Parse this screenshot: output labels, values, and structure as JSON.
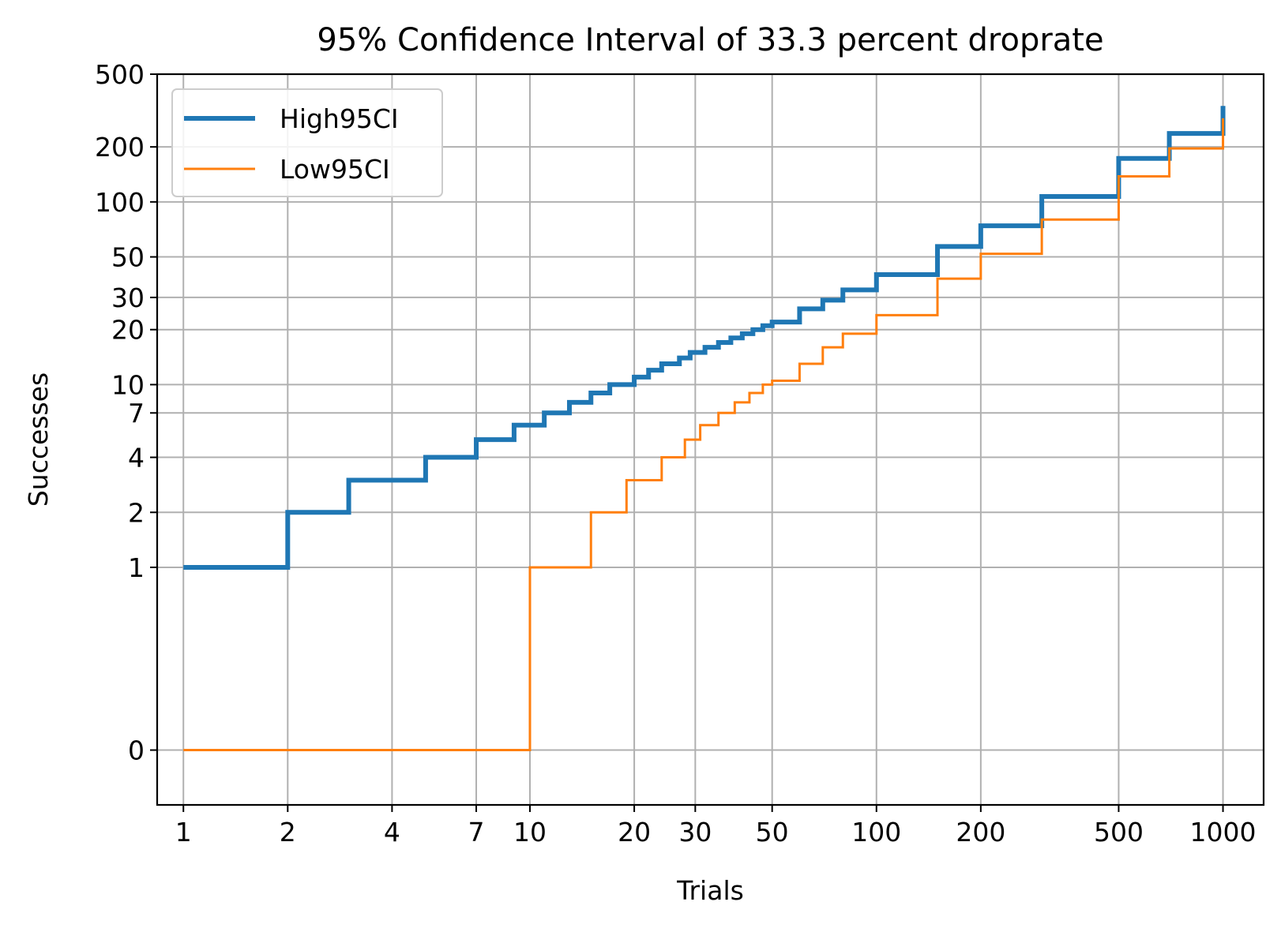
{
  "chart_data": {
    "type": "line",
    "title": "95% Confidence Interval of 33.3 percent droprate",
    "xlabel": "Trials",
    "ylabel": "Successes",
    "x_scale": "log",
    "y_scale": "symlog",
    "xlim": [
      0.84,
      1310
    ],
    "ylim": [
      -0.3,
      500
    ],
    "x_ticks": [
      {
        "value": 1,
        "label": "1"
      },
      {
        "value": 2,
        "label": "2"
      },
      {
        "value": 4,
        "label": "4"
      },
      {
        "value": 7,
        "label": "7"
      },
      {
        "value": 10,
        "label": "10"
      },
      {
        "value": 20,
        "label": "20"
      },
      {
        "value": 30,
        "label": "30"
      },
      {
        "value": 50,
        "label": "50"
      },
      {
        "value": 100,
        "label": "100"
      },
      {
        "value": 200,
        "label": "200"
      },
      {
        "value": 500,
        "label": "500"
      },
      {
        "value": 1000,
        "label": "1000"
      }
    ],
    "y_ticks": [
      {
        "value": 0,
        "label": "0"
      },
      {
        "value": 1,
        "label": "1"
      },
      {
        "value": 2,
        "label": "2"
      },
      {
        "value": 4,
        "label": "4"
      },
      {
        "value": 7,
        "label": "7"
      },
      {
        "value": 10,
        "label": "10"
      },
      {
        "value": 20,
        "label": "20"
      },
      {
        "value": 30,
        "label": "30"
      },
      {
        "value": 50,
        "label": "50"
      },
      {
        "value": 100,
        "label": "100"
      },
      {
        "value": 200,
        "label": "200"
      },
      {
        "value": 500,
        "label": "500"
      }
    ],
    "grid": true,
    "legend_position": "top-left",
    "series": [
      {
        "name": "High95CI",
        "color": "#1f77b4",
        "step": true,
        "points": [
          [
            1,
            1
          ],
          [
            2,
            2
          ],
          [
            3,
            3
          ],
          [
            5,
            4
          ],
          [
            7,
            5
          ],
          [
            9,
            6
          ],
          [
            11,
            7
          ],
          [
            13,
            8
          ],
          [
            15,
            9
          ],
          [
            17,
            10
          ],
          [
            20,
            11
          ],
          [
            22,
            12
          ],
          [
            24,
            13
          ],
          [
            27,
            14
          ],
          [
            29,
            15
          ],
          [
            32,
            16
          ],
          [
            35,
            17
          ],
          [
            38,
            18
          ],
          [
            41,
            19
          ],
          [
            44,
            20
          ],
          [
            47,
            21
          ],
          [
            50,
            22
          ],
          [
            60,
            26
          ],
          [
            70,
            29
          ],
          [
            80,
            33
          ],
          [
            100,
            40
          ],
          [
            150,
            57
          ],
          [
            200,
            74
          ],
          [
            300,
            107
          ],
          [
            500,
            173
          ],
          [
            700,
            237
          ],
          [
            1000,
            335
          ]
        ]
      },
      {
        "name": "Low95CI",
        "color": "#ff7f0e",
        "step": true,
        "points": [
          [
            1,
            0
          ],
          [
            10,
            1
          ],
          [
            15,
            2
          ],
          [
            19,
            3
          ],
          [
            24,
            4
          ],
          [
            28,
            5
          ],
          [
            31,
            6
          ],
          [
            35,
            7
          ],
          [
            39,
            8
          ],
          [
            43,
            9
          ],
          [
            47,
            10
          ],
          [
            50,
            10.5
          ],
          [
            60,
            13
          ],
          [
            70,
            16
          ],
          [
            80,
            19
          ],
          [
            100,
            24
          ],
          [
            150,
            38
          ],
          [
            200,
            52
          ],
          [
            300,
            80
          ],
          [
            500,
            138
          ],
          [
            700,
            196
          ],
          [
            1000,
            287
          ]
        ]
      }
    ]
  }
}
